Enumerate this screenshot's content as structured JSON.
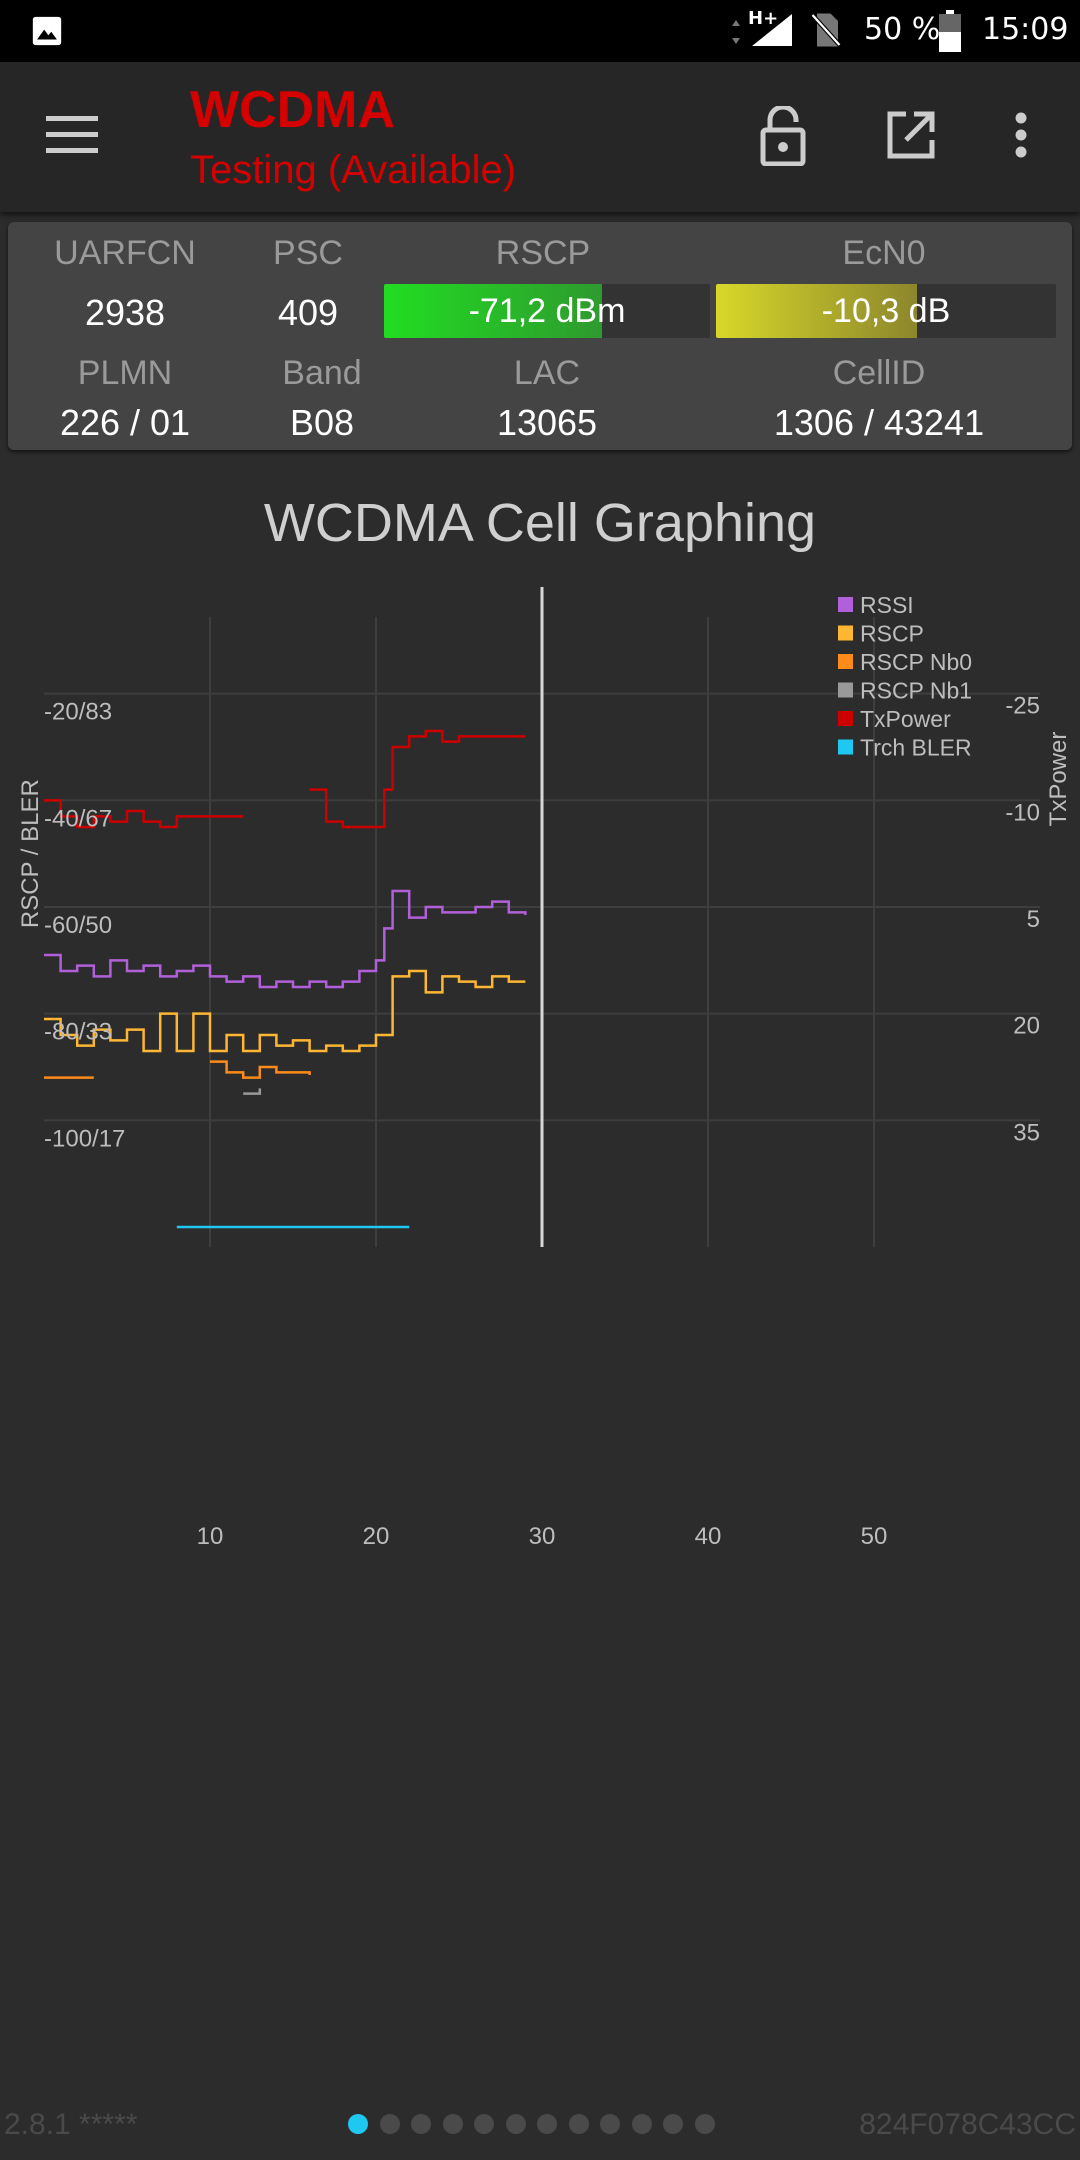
{
  "status_bar": {
    "network": "H+",
    "battery": "50 %",
    "time": "15:09"
  },
  "app_bar": {
    "title": "WCDMA",
    "subtitle": "Testing (Available)",
    "icons": [
      "menu-icon",
      "lock-icon",
      "open-external-icon",
      "more-vert-icon"
    ],
    "title_color": "#d50000"
  },
  "cell_info": {
    "uarfcn_label": "UARFCN",
    "uarfcn": "2938",
    "psc_label": "PSC",
    "psc": "409",
    "rscp_label": "RSCP",
    "rscp": "-71,2 dBm",
    "rscp_level": 0.67,
    "ecn0_label": "EcN0",
    "ecn0": "-10,3 dB",
    "ecn0_level": 0.59,
    "plmn_label": "PLMN",
    "plmn": "226 / 01",
    "band_label": "Band",
    "band": "B08",
    "lac_label": "LAC",
    "lac": "13065",
    "cellid_label": "CellID",
    "cellid": "1306 / 43241"
  },
  "chart_data": {
    "type": "line",
    "title": "WCDMA Cell Graphing",
    "ylabel_left": "RSCP / BLER",
    "ylabel_right": "TxPower",
    "x_ticks": [
      "10",
      "20",
      "30",
      "40",
      "50"
    ],
    "y_ticks_left": [
      "-20/83",
      "-40/67",
      "-60/50",
      "-80/33",
      "-100/17"
    ],
    "y_ticks_right": [
      "-25",
      "-10",
      "5",
      "20",
      "35"
    ],
    "xlim": [
      0,
      62
    ],
    "ylim_left": [
      -120,
      0
    ],
    "cursor_x": 30,
    "legend_position": "top-right",
    "series": [
      {
        "name": "RSSI",
        "color": "#b060d8",
        "axis": "left",
        "points": [
          [
            0,
            -69
          ],
          [
            1,
            -72
          ],
          [
            2,
            -71
          ],
          [
            3,
            -73
          ],
          [
            4,
            -70
          ],
          [
            5,
            -72
          ],
          [
            6,
            -71
          ],
          [
            7,
            -73
          ],
          [
            8,
            -72
          ],
          [
            9,
            -71
          ],
          [
            10,
            -73
          ],
          [
            11,
            -74
          ],
          [
            12,
            -73
          ],
          [
            13,
            -75
          ],
          [
            14,
            -74
          ],
          [
            15,
            -75
          ],
          [
            16,
            -74
          ],
          [
            17,
            -75
          ],
          [
            18,
            -74
          ],
          [
            19,
            -72
          ],
          [
            20,
            -70
          ],
          [
            20.5,
            -64
          ],
          [
            21,
            -57
          ],
          [
            22,
            -62
          ],
          [
            23,
            -60
          ],
          [
            24,
            -61
          ],
          [
            25,
            -61
          ],
          [
            26,
            -60
          ],
          [
            27,
            -59
          ],
          [
            28,
            -61
          ],
          [
            29,
            -61.5
          ]
        ]
      },
      {
        "name": "RSCP",
        "color": "#ffb733",
        "axis": "left",
        "points": [
          [
            0,
            -81
          ],
          [
            1,
            -84
          ],
          [
            2,
            -86
          ],
          [
            3,
            -83
          ],
          [
            4,
            -85
          ],
          [
            5,
            -83
          ],
          [
            6,
            -87
          ],
          [
            7,
            -80
          ],
          [
            8,
            -87
          ],
          [
            9,
            -80
          ],
          [
            10,
            -87
          ],
          [
            11,
            -84
          ],
          [
            12,
            -87
          ],
          [
            13,
            -84
          ],
          [
            14,
            -86
          ],
          [
            15,
            -85
          ],
          [
            16,
            -87
          ],
          [
            17,
            -86
          ],
          [
            18,
            -87
          ],
          [
            19,
            -86
          ],
          [
            20,
            -84
          ],
          [
            21,
            -73
          ],
          [
            22,
            -72
          ],
          [
            23,
            -76
          ],
          [
            24,
            -73
          ],
          [
            25,
            -74
          ],
          [
            26,
            -75
          ],
          [
            27,
            -73
          ],
          [
            28,
            -74
          ],
          [
            29,
            -74
          ]
        ]
      },
      {
        "name": "RSCP Nb0",
        "color": "#ff8c1a",
        "axis": "left",
        "points": [
          [
            0,
            -92
          ],
          [
            3,
            -92
          ],
          [
            null,
            null
          ],
          [
            10,
            -89
          ],
          [
            11,
            -91
          ],
          [
            12,
            -92
          ],
          [
            13,
            -90
          ],
          [
            14,
            -91
          ],
          [
            15,
            -91
          ],
          [
            16,
            -91.5
          ]
        ]
      },
      {
        "name": "RSCP Nb1",
        "color": "#999999",
        "axis": "left",
        "points": [
          [
            12,
            -95
          ],
          [
            13,
            -94
          ]
        ]
      },
      {
        "name": "TxPower",
        "color": "#cc0000",
        "axis": "left",
        "points": [
          [
            0,
            -40
          ],
          [
            1,
            -43
          ],
          [
            2,
            -45
          ],
          [
            3,
            -43
          ],
          [
            4,
            -44
          ],
          [
            5,
            -42
          ],
          [
            6,
            -44
          ],
          [
            7,
            -45
          ],
          [
            8,
            -43
          ],
          [
            9,
            -43
          ],
          [
            10,
            -43
          ],
          [
            11,
            -43
          ],
          [
            12,
            -43
          ],
          [
            null,
            null
          ],
          [
            16,
            -38
          ],
          [
            17,
            -44
          ],
          [
            18,
            -45
          ],
          [
            19,
            -45
          ],
          [
            20,
            -45
          ],
          [
            20.5,
            -38
          ],
          [
            21,
            -30
          ],
          [
            22,
            -28
          ],
          [
            23,
            -27
          ],
          [
            24,
            -29
          ],
          [
            25,
            -28
          ],
          [
            26,
            -28
          ],
          [
            27,
            -28
          ],
          [
            28,
            -28
          ],
          [
            29,
            -28
          ]
        ]
      },
      {
        "name": "Trch BLER",
        "color": "#1ec8f0",
        "axis": "left",
        "points": [
          [
            8,
            -120
          ],
          [
            22,
            -120
          ]
        ]
      }
    ]
  },
  "footer": {
    "version": "2.8.1 *****",
    "device_id": "824F078C43CC",
    "page_count": 12,
    "active_page": 0
  }
}
